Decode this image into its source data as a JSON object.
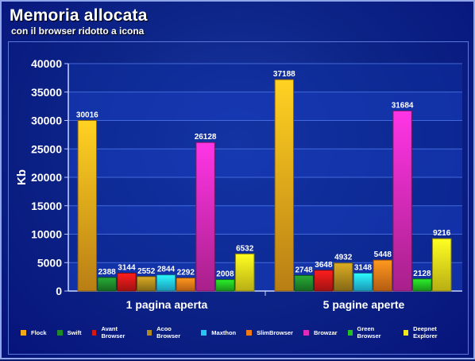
{
  "chart_data": {
    "type": "bar",
    "title": "Memoria allocata",
    "subtitle": "con il browser ridotto a icona",
    "xlabel": "",
    "ylabel": "Kb",
    "ylim": [
      0,
      40000
    ],
    "yticks": [
      0,
      5000,
      10000,
      15000,
      20000,
      25000,
      30000,
      35000,
      40000
    ],
    "categories": [
      "1 pagina aperta",
      "5 pagine aperte"
    ],
    "grid": true,
    "legend_position": "bottom",
    "series": [
      {
        "name": "Flock",
        "color": "#f7a81b",
        "values": [
          30016,
          37188
        ]
      },
      {
        "name": "Swift",
        "color": "#1f8a2a",
        "values": [
          2388,
          2748
        ]
      },
      {
        "name": "Avant Browser",
        "color": "#d41818",
        "values": [
          3144,
          3648
        ]
      },
      {
        "name": "Acoo Browser",
        "color": "#b08a1c",
        "values": [
          2552,
          4932
        ]
      },
      {
        "name": "Maxthon",
        "color": "#22c8f0",
        "values": [
          2844,
          3148
        ]
      },
      {
        "name": "SlimBrowser",
        "color": "#f07a18",
        "values": [
          2292,
          5448
        ]
      },
      {
        "name": "Browzar",
        "color": "#e02ab8",
        "values": [
          26128,
          31684
        ]
      },
      {
        "name": "Green Browser",
        "color": "#22c022",
        "values": [
          2008,
          2128
        ]
      },
      {
        "name": "Deepnet Explorer",
        "color": "#f5e81a",
        "values": [
          6532,
          9216
        ]
      }
    ]
  }
}
